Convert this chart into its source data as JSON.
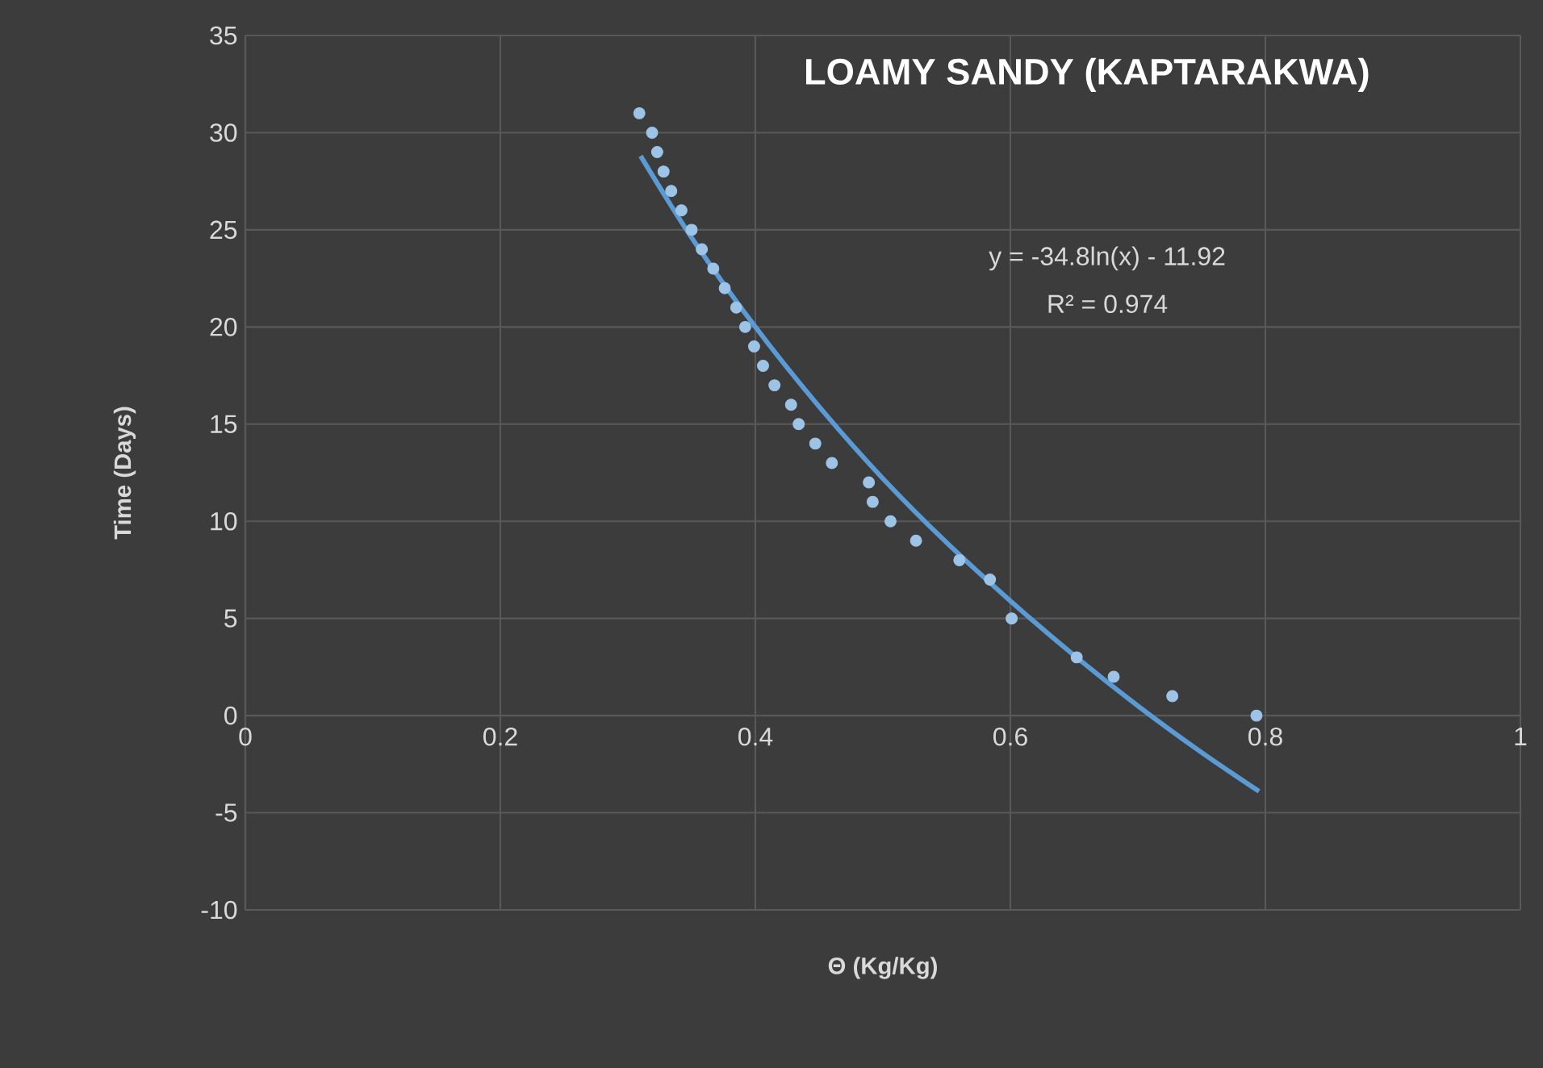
{
  "chart_data": {
    "type": "scatter",
    "title": "LOAMY SANDY (KAPTARAKWA)",
    "xlabel": "Θ (Kg/Kg)",
    "ylabel": "Time (Days)",
    "annotations": [
      "y = -34.8ln(x) - 11.92",
      "R² = 0.974"
    ],
    "xlim": [
      0,
      1
    ],
    "ylim": [
      -10,
      35
    ],
    "xticks": [
      0,
      0.2,
      0.4,
      0.6,
      0.8,
      1
    ],
    "yticks": [
      -10,
      -5,
      0,
      5,
      10,
      15,
      20,
      25,
      30,
      35
    ],
    "grid": true,
    "series": [
      {
        "color": "#9dc3e6",
        "marker": "circle",
        "x": [
          0.309,
          0.319,
          0.323,
          0.328,
          0.334,
          0.342,
          0.35,
          0.358,
          0.367,
          0.376,
          0.385,
          0.392,
          0.399,
          0.406,
          0.415,
          0.428,
          0.434,
          0.447,
          0.46,
          0.489,
          0.492,
          0.506,
          0.526,
          0.56,
          0.584,
          0.601,
          0.652,
          0.681,
          0.727,
          0.793
        ],
        "values": [
          31,
          30,
          29,
          28,
          27,
          26,
          25,
          24,
          23,
          22,
          21,
          20,
          19,
          18,
          17,
          16,
          15,
          14,
          13,
          12,
          11,
          10,
          9,
          8,
          7,
          5,
          3,
          2,
          1,
          0
        ]
      },
      {
        "type": "line",
        "color": "#5b9bd5",
        "marker": "none",
        "line_style": "solid",
        "x": [
          0.31,
          0.35,
          0.4,
          0.45,
          0.5,
          0.55,
          0.6,
          0.65,
          0.7,
          0.75,
          0.795
        ],
        "values": [
          28.8,
          24.6,
          20,
          15.9,
          12.2,
          8.9,
          5.9,
          3.1,
          0.5,
          -1.9,
          -3.9
        ]
      }
    ]
  }
}
